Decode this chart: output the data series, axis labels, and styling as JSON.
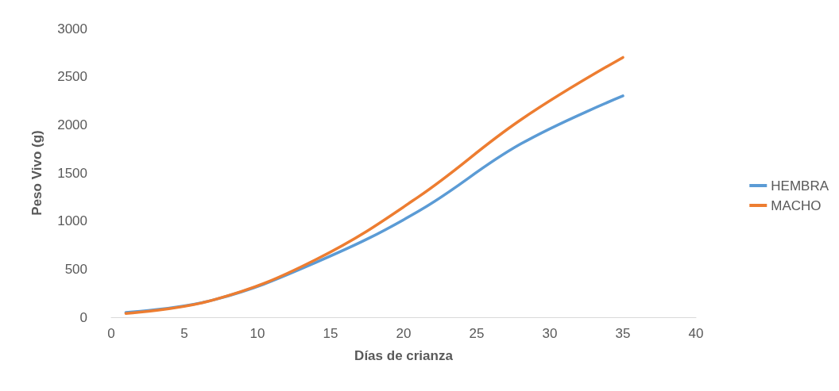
{
  "chart_data": {
    "type": "line",
    "xlabel": "Días de crianza",
    "ylabel": "Peso Vivo (g)",
    "xlim": [
      0,
      40
    ],
    "xticks": [
      0,
      5,
      10,
      15,
      20,
      25,
      30,
      35,
      40
    ],
    "ylim": [
      0,
      3000
    ],
    "yticks": [
      0,
      500,
      1000,
      1500,
      2000,
      2500,
      3000
    ],
    "grid": false,
    "legend": "right",
    "marker": "none",
    "line_style": "solid",
    "series": [
      {
        "name": "HEMBRA",
        "color": "#5b9bd5",
        "x": [
          1,
          7,
          14,
          21,
          28,
          35
        ],
        "values": [
          50,
          180,
          570,
          1100,
          1800,
          2300
        ]
      },
      {
        "name": "MACHO",
        "color": "#ed7d31",
        "x": [
          1,
          7,
          14,
          21,
          28,
          35
        ],
        "values": [
          40,
          180,
          600,
          1250,
          2050,
          2700
        ]
      }
    ]
  }
}
